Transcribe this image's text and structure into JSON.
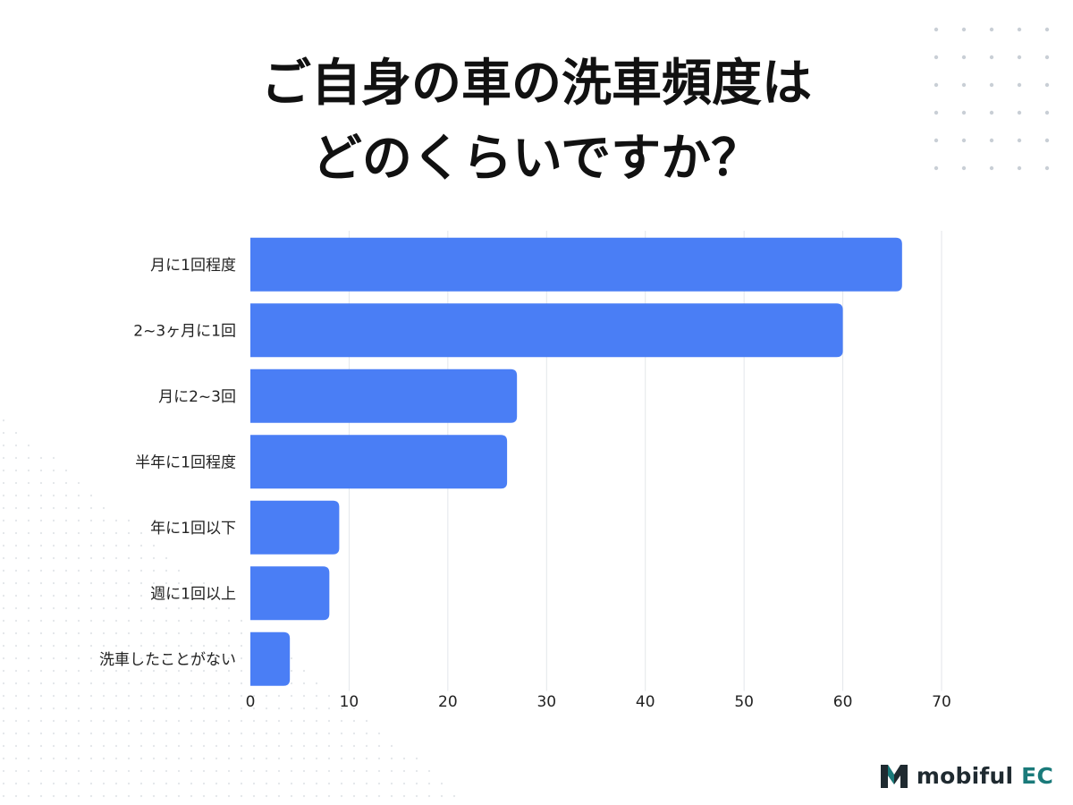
{
  "title_lines": [
    "ご自身の車の洗車頻度は",
    "どのくらいですか？"
  ],
  "brand": {
    "text": "mobiful",
    "accent": "EC",
    "icon": "m-logo-icon"
  },
  "colors": {
    "bar": "#4a7ef5",
    "grid": "#e3e6ea",
    "dots": "#c9cfd6",
    "text": "#222222",
    "brand_teal": "#1a7a7a"
  },
  "chart_data": {
    "type": "bar",
    "orientation": "horizontal",
    "categories": [
      "月に1回程度",
      "2~3ヶ月に1回",
      "月に2~3回",
      "半年に1回程度",
      "年に1回以下",
      "週に1回以上",
      "洗車したことがない"
    ],
    "values": [
      66,
      60,
      27,
      26,
      9,
      8,
      4
    ],
    "xlim": [
      0,
      70
    ],
    "xticks": [
      0,
      10,
      20,
      30,
      40,
      50,
      60,
      70
    ],
    "xlabel": "",
    "ylabel": "",
    "grid": true,
    "legend": "none"
  }
}
